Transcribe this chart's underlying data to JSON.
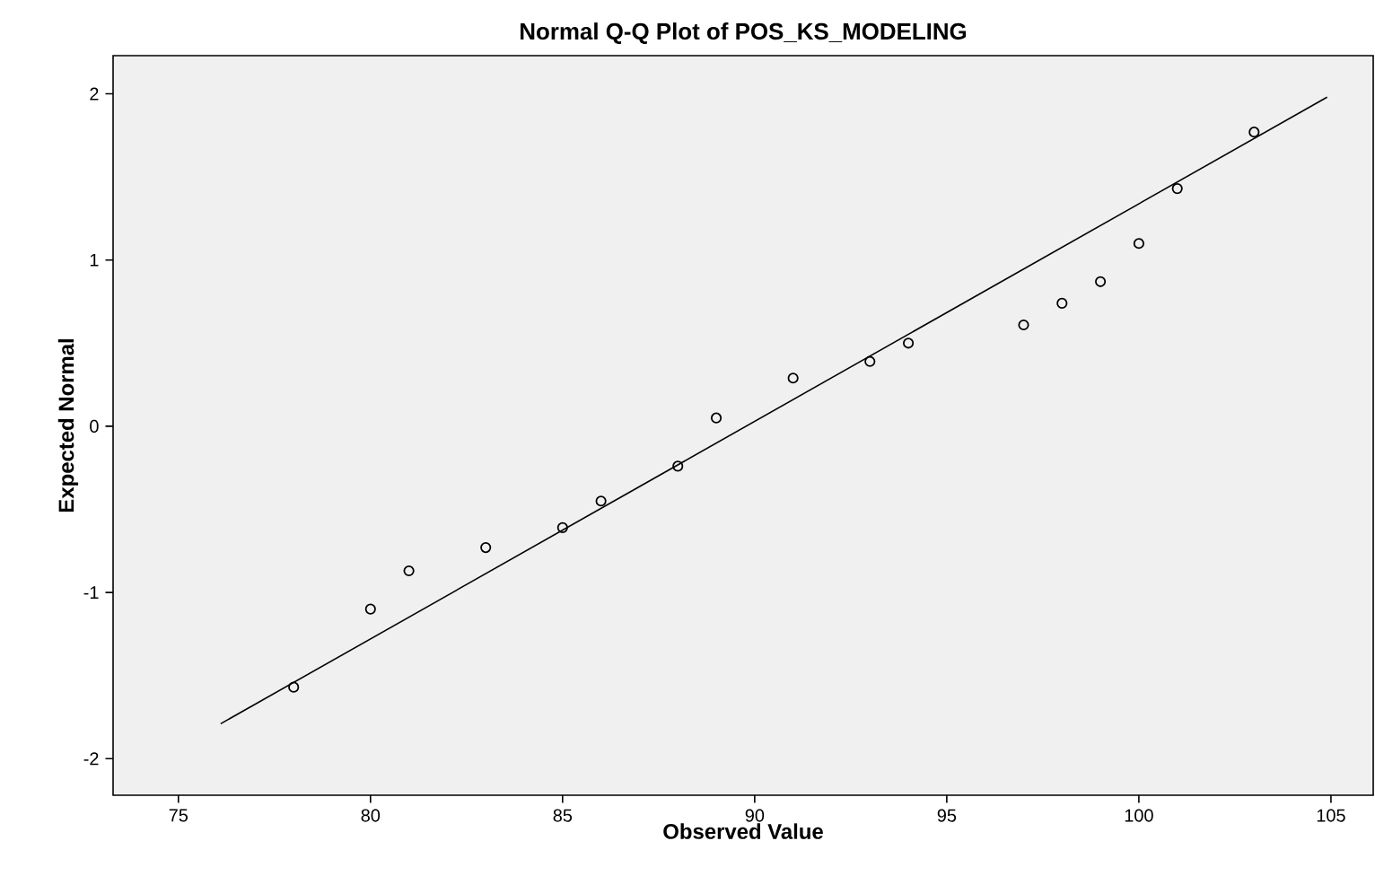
{
  "chart_data": {
    "type": "scatter",
    "title": "Normal Q-Q Plot of POS_KS_MODELING",
    "xlabel": "Observed Value",
    "ylabel": "Expected Normal",
    "xlim": [
      73.3,
      106.1
    ],
    "ylim": [
      -2.22,
      2.23
    ],
    "xticks": [
      75,
      80,
      85,
      90,
      95,
      100,
      105
    ],
    "yticks": [
      -2,
      -1,
      0,
      1,
      2
    ],
    "marker": "circle",
    "grid": false,
    "series": [
      {
        "color": "#000000",
        "x": [
          78,
          80,
          81,
          83,
          85,
          86,
          88,
          89,
          91,
          93,
          94,
          97,
          98,
          99,
          100,
          101,
          103
        ],
        "values": [
          -1.57,
          -1.1,
          -0.87,
          -0.73,
          -0.61,
          -0.45,
          -0.24,
          0.05,
          0.29,
          0.39,
          0.5,
          0.61,
          0.74,
          0.87,
          1.1,
          1.43,
          1.77
        ]
      },
      {
        "type": "line",
        "color": "#000000",
        "marker": "none",
        "x": [
          76.1,
          104.9
        ],
        "values": [
          -1.79,
          1.98
        ]
      }
    ]
  }
}
